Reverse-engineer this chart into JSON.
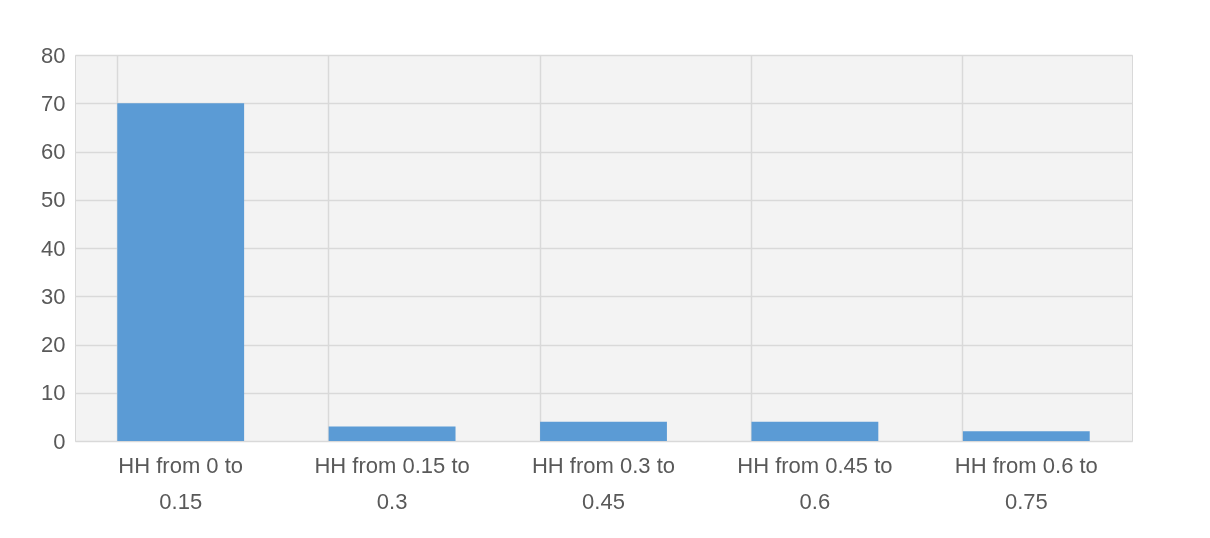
{
  "chart_data": {
    "type": "bar",
    "categories": [
      "HH from 0 to 0.15",
      "HH from 0.15 to 0.3",
      "HH from 0.3 to 0.45",
      "HH from 0.45 to 0.6",
      "HH from 0.6 to 0.75"
    ],
    "values": [
      70,
      3,
      4,
      4,
      2
    ],
    "color": "#5b9bd5",
    "ylim": [
      0,
      80
    ],
    "yticks": [
      0,
      10,
      20,
      30,
      40,
      50,
      60,
      70,
      80
    ],
    "grid": true
  }
}
